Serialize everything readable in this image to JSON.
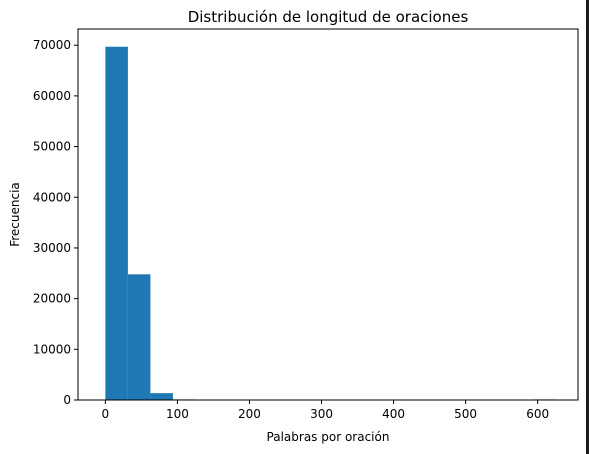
{
  "chart_data": {
    "type": "histogram",
    "title": "Distribución de longitud de oraciones",
    "xlabel": "Palabras por oración",
    "ylabel": "Frecuencia",
    "xlim": [
      -38,
      656
    ],
    "ylim": [
      0,
      73200
    ],
    "x_ticks": [
      0,
      100,
      200,
      300,
      400,
      500,
      600
    ],
    "y_ticks": [
      0,
      10000,
      20000,
      30000,
      40000,
      50000,
      60000,
      70000
    ],
    "bin_width": 31.25,
    "bins": [
      {
        "x0": 0,
        "x1": 31.25,
        "count": 69700
      },
      {
        "x0": 31.25,
        "x1": 62.5,
        "count": 24800
      },
      {
        "x0": 62.5,
        "x1": 93.75,
        "count": 1350
      },
      {
        "x0": 93.75,
        "x1": 125,
        "count": 60
      },
      {
        "x0": 125,
        "x1": 156.25,
        "count": 0
      },
      {
        "x0": 156.25,
        "x1": 187.5,
        "count": 0
      },
      {
        "x0": 187.5,
        "x1": 218.75,
        "count": 0
      },
      {
        "x0": 218.75,
        "x1": 250,
        "count": 0
      },
      {
        "x0": 250,
        "x1": 281.25,
        "count": 0
      },
      {
        "x0": 281.25,
        "x1": 312.5,
        "count": 0
      },
      {
        "x0": 312.5,
        "x1": 343.75,
        "count": 0
      },
      {
        "x0": 343.75,
        "x1": 375,
        "count": 0
      },
      {
        "x0": 375,
        "x1": 406.25,
        "count": 0
      },
      {
        "x0": 406.25,
        "x1": 437.5,
        "count": 0
      },
      {
        "x0": 437.5,
        "x1": 468.75,
        "count": 0
      },
      {
        "x0": 468.75,
        "x1": 500,
        "count": 0
      },
      {
        "x0": 500,
        "x1": 531.25,
        "count": 0
      },
      {
        "x0": 531.25,
        "x1": 562.5,
        "count": 0
      },
      {
        "x0": 562.5,
        "x1": 593.75,
        "count": 0
      },
      {
        "x0": 593.75,
        "x1": 625,
        "count": 1
      }
    ],
    "bar_color": "#1f77b4",
    "grid": false,
    "legend": "none"
  }
}
